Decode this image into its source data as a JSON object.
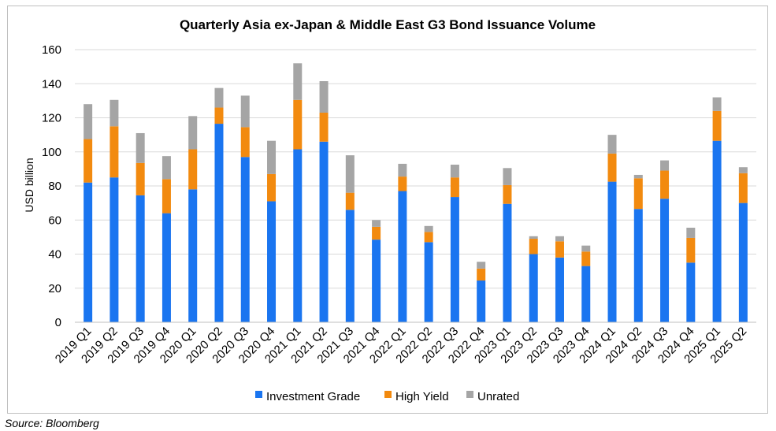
{
  "chart_data": {
    "type": "bar",
    "stacked": true,
    "title": "Quarterly Asia ex-Japan & Middle East G3 Bond Issuance Volume",
    "ylabel": "USD billion",
    "xlabel": "",
    "ylim": [
      0,
      160
    ],
    "yticks": [
      0,
      20,
      40,
      60,
      80,
      100,
      120,
      140,
      160
    ],
    "grid": true,
    "legend_position": "bottom",
    "categories": [
      "2019 Q1",
      "2019 Q2",
      "2019 Q3",
      "2019 Q4",
      "2020 Q1",
      "2020 Q2",
      "2020 Q3",
      "2020 Q4",
      "2021 Q1",
      "2021 Q2",
      "2021 Q3",
      "2021 Q4",
      "2022 Q1",
      "2022 Q2",
      "2022 Q3",
      "2022 Q4",
      "2023 Q1",
      "2023 Q2",
      "2023 Q3",
      "2023 Q4",
      "2024 Q1",
      "2024 Q2",
      "2024 Q3",
      "2024 Q4",
      "2025 Q1",
      "2025 Q2"
    ],
    "series": [
      {
        "name": "Investment Grade",
        "color": "#1a75f0",
        "values": [
          82,
          85,
          74.5,
          64,
          78,
          116.5,
          97,
          71,
          101.5,
          106,
          66,
          48.5,
          77,
          47,
          73.5,
          24.5,
          69.5,
          40,
          38,
          33,
          82.5,
          66.5,
          72.5,
          35,
          106.5,
          70
        ]
      },
      {
        "name": "High Yield",
        "color": "#f28a0f",
        "values": [
          25.5,
          30,
          19,
          20,
          23.5,
          9.5,
          17.5,
          16,
          29,
          17,
          10,
          7.5,
          8.5,
          6,
          11.5,
          7,
          11,
          9,
          9.5,
          8.5,
          16.5,
          18,
          16.5,
          14.5,
          17.5,
          17.5
        ]
      },
      {
        "name": "Unrated",
        "color": "#a5a5a5",
        "values": [
          20.5,
          15.5,
          17.5,
          13.5,
          19.5,
          11.5,
          18.5,
          19.5,
          21.5,
          18.5,
          22,
          4,
          7.5,
          3.5,
          7.5,
          4,
          10,
          1.5,
          3,
          3.5,
          11,
          2,
          6,
          6,
          8,
          3.5
        ]
      }
    ]
  },
  "source": "Source: Bloomberg"
}
